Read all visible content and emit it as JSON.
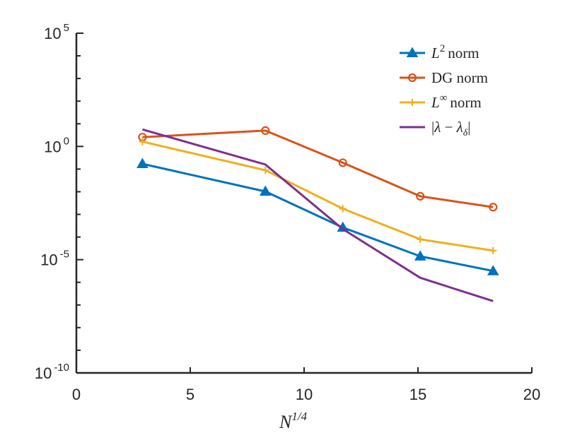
{
  "chart_data": {
    "type": "line",
    "xlabel": "N^{1/4}",
    "xlim": [
      0,
      20
    ],
    "ylim_log10": [
      -10,
      5
    ],
    "x_ticks": [
      "0",
      "5",
      "10",
      "15",
      "20"
    ],
    "y_ticks": [
      {
        "base": "10",
        "exp": "5",
        "value": 5
      },
      {
        "base": "10",
        "exp": "0",
        "value": 0
      },
      {
        "base": "10",
        "exp": "-5",
        "value": -5
      },
      {
        "base": "10",
        "exp": "-10",
        "value": -10
      }
    ],
    "legend_position": "top-right",
    "series": [
      {
        "name": "L^2 norm",
        "color": "#0072BD",
        "marker": "triangle",
        "x": [
          2.9,
          8.3,
          11.7,
          15.1,
          18.3
        ],
        "y_log10": [
          -0.77,
          -1.99,
          -3.58,
          -4.85,
          -5.5
        ]
      },
      {
        "name": "DG norm",
        "color": "#D95319",
        "marker": "circle",
        "x": [
          2.9,
          8.3,
          11.7,
          15.1,
          18.3
        ],
        "y_log10": [
          0.41,
          0.7,
          -0.72,
          -2.2,
          -2.68
        ]
      },
      {
        "name": "L^∞ norm",
        "color": "#EDB120",
        "marker": "plus",
        "x": [
          2.9,
          8.3,
          11.7,
          15.1,
          18.3
        ],
        "y_log10": [
          0.21,
          -1.05,
          -2.75,
          -4.1,
          -4.6
        ]
      },
      {
        "name": "|λ − λδ|",
        "color": "#7E2F8E",
        "marker": "none",
        "x": [
          2.9,
          8.3,
          11.7,
          15.1,
          18.3
        ],
        "y_log10": [
          0.75,
          -0.8,
          -3.65,
          -5.8,
          -6.83
        ]
      }
    ]
  }
}
